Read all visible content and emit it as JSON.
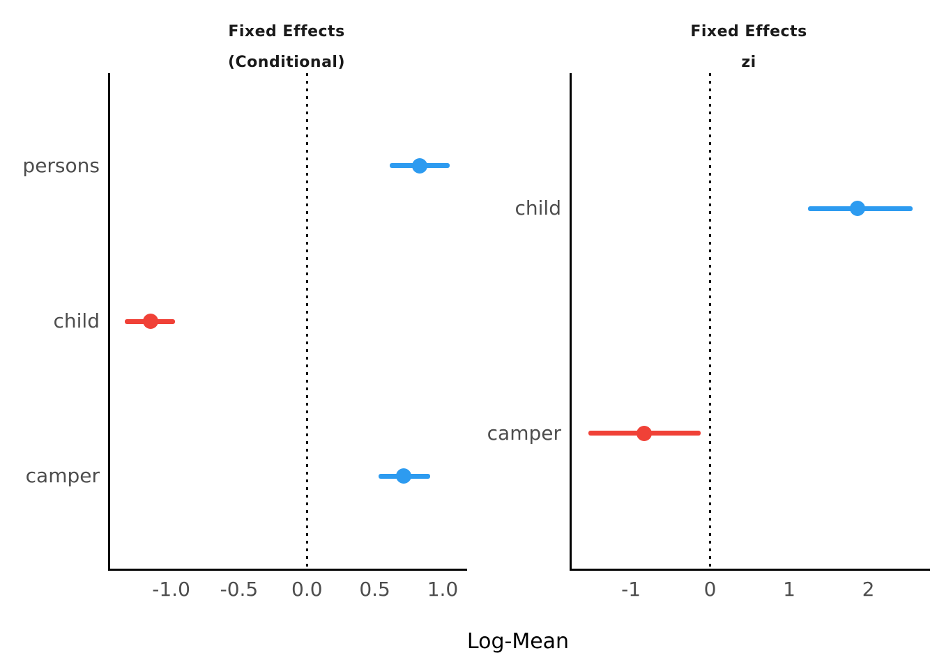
{
  "figure": {
    "xlabel": "Log-Mean",
    "colors": {
      "blue": "#2D9BF0",
      "red": "#F04137",
      "axis": "#000000",
      "tick_text": "#4D4D4D",
      "title_text": "#1A1A1A"
    }
  },
  "chart_data": [
    {
      "type": "forest",
      "title_lines": [
        "Fixed Effects",
        "(Conditional)"
      ],
      "xlim": [
        -1.45,
        1.18
      ],
      "xticks": [
        -1.0,
        -0.5,
        0.0,
        0.5,
        1.0
      ],
      "xtick_labels": [
        "-1.0",
        "-0.5",
        "0.0",
        "0.5",
        "1.0"
      ],
      "zero_line": 0,
      "grid": false,
      "rows": [
        {
          "label": "persons",
          "estimate": 0.83,
          "ci_low": 0.61,
          "ci_high": 1.05,
          "color": "blue"
        },
        {
          "label": "child",
          "estimate": -1.15,
          "ci_low": -1.34,
          "ci_high": -0.97,
          "color": "red"
        },
        {
          "label": "camper",
          "estimate": 0.71,
          "ci_low": 0.53,
          "ci_high": 0.91,
          "color": "blue"
        }
      ],
      "row_fractions": [
        0.187,
        0.501,
        0.813
      ]
    },
    {
      "type": "forest",
      "title_lines": [
        "Fixed Effects",
        "zi"
      ],
      "xlim": [
        -1.75,
        2.78
      ],
      "xticks": [
        -1,
        0,
        1,
        2
      ],
      "xtick_labels": [
        "-1",
        "0",
        "1",
        "2"
      ],
      "zero_line": 0,
      "grid": false,
      "rows": [
        {
          "label": "child",
          "estimate": 1.86,
          "ci_low": 1.24,
          "ci_high": 2.56,
          "color": "blue"
        },
        {
          "label": "camper",
          "estimate": -0.83,
          "ci_low": -1.54,
          "ci_high": -0.12,
          "color": "red"
        }
      ],
      "row_fractions": [
        0.273,
        0.727
      ]
    }
  ]
}
